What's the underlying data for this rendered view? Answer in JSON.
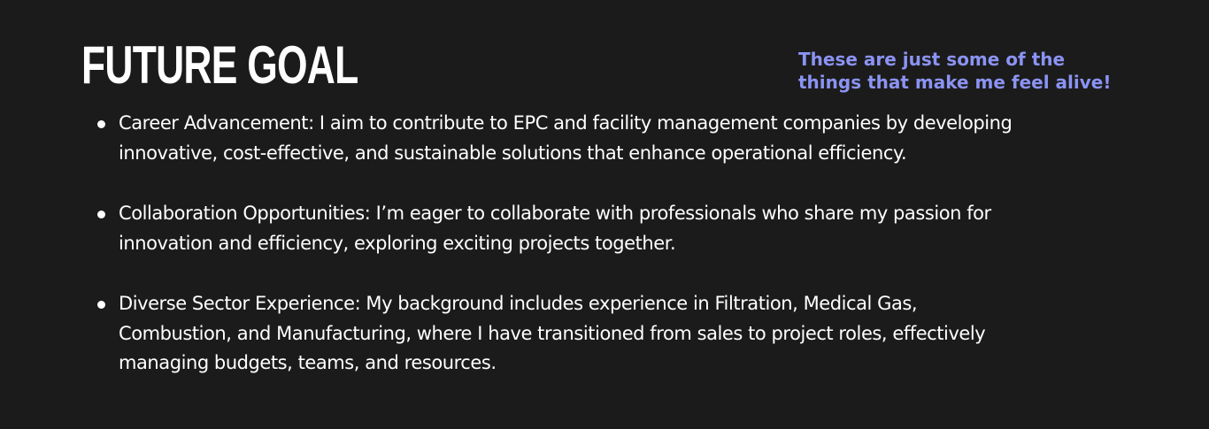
{
  "slide": {
    "title": "FUTURE GOAL",
    "tagline": [
      "These are just some of the",
      "things that make me feel alive!"
    ],
    "goals": [
      {
        "lines": [
          "Career Advancement: I aim to contribute to EPC and facility management companies by developing",
          "innovative, cost-effective, and sustainable solutions that enhance operational efficiency."
        ]
      },
      {
        "lines": [
          "Collaboration Opportunities: I’m eager to collaborate with professionals who share my passion for",
          "innovation and efficiency, exploring exciting projects together."
        ]
      },
      {
        "lines": [
          "Diverse Sector Experience: My background includes experience in Filtration, Medical Gas,",
          "Combustion, and Manufacturing, where I have transitioned from sales to project roles, effectively",
          "managing budgets, teams, and resources."
        ]
      }
    ],
    "colors": {
      "background": "#1b1b1b",
      "text": "#ffffff",
      "accent": "#8b93f3"
    }
  }
}
